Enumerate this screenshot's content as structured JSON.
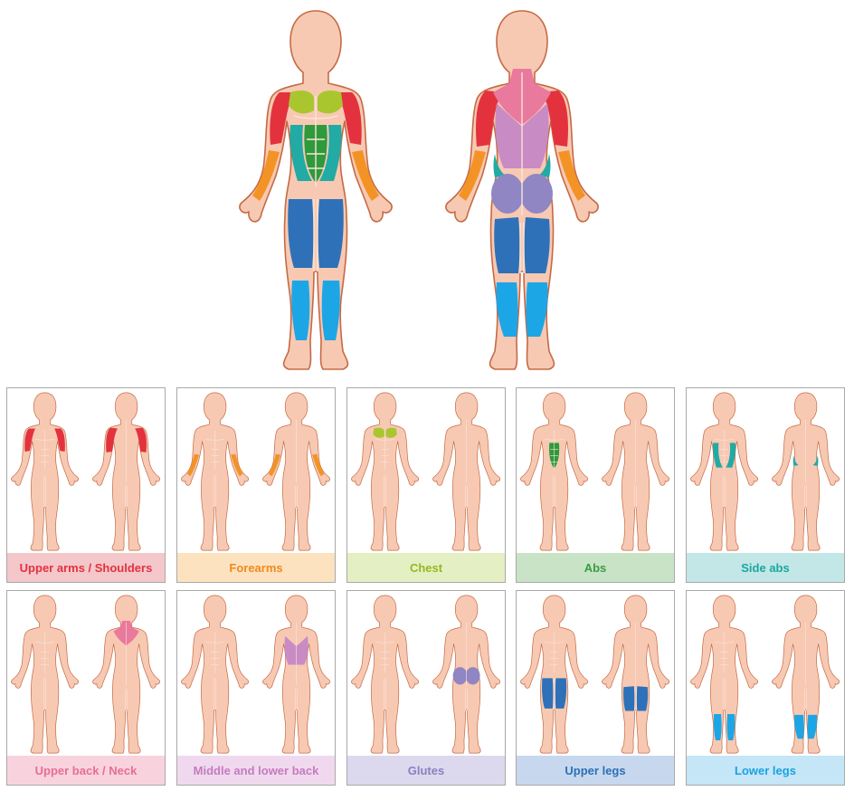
{
  "colors": {
    "skin": "#f7c9b3",
    "outline": "#c56a44",
    "muscle_line": "#fbe4d9"
  },
  "muscle_groups": [
    {
      "key": "upper_arms_shoulders",
      "label": "Upper arms / Shoulders",
      "color": "#e3323e",
      "caption_bg": "#f4c7cb",
      "text_color": "#e3323e"
    },
    {
      "key": "forearms",
      "label": "Forearms",
      "color": "#f39325",
      "caption_bg": "#fde2c0",
      "text_color": "#ee8a1f"
    },
    {
      "key": "chest",
      "label": "Chest",
      "color": "#a9c62e",
      "caption_bg": "#e5efc4",
      "text_color": "#95b820"
    },
    {
      "key": "abs",
      "label": "Abs",
      "color": "#2f9a3c",
      "caption_bg": "#c8e3c6",
      "text_color": "#3a9c43"
    },
    {
      "key": "side_abs",
      "label": "Side abs",
      "color": "#22aaa4",
      "caption_bg": "#c3e6e6",
      "text_color": "#1aa7a1"
    },
    {
      "key": "upper_back_neck",
      "label": "Upper back / Neck",
      "color": "#e9799d",
      "caption_bg": "#f8d3de",
      "text_color": "#e66f92"
    },
    {
      "key": "middle_lower_back",
      "label": "Middle and lower back",
      "color": "#c98bc4",
      "caption_bg": "#f0d9ee",
      "text_color": "#c57bbf"
    },
    {
      "key": "glutes",
      "label": "Glutes",
      "color": "#8f86c3",
      "caption_bg": "#dcd9ee",
      "text_color": "#8a80c0"
    },
    {
      "key": "upper_legs",
      "label": "Upper legs",
      "color": "#2e71b8",
      "caption_bg": "#c7d8ee",
      "text_color": "#2e6fb5"
    },
    {
      "key": "lower_legs",
      "label": "Lower legs",
      "color": "#1da6e6",
      "caption_bg": "#c4e6f6",
      "text_color": "#1ca2e0"
    }
  ]
}
